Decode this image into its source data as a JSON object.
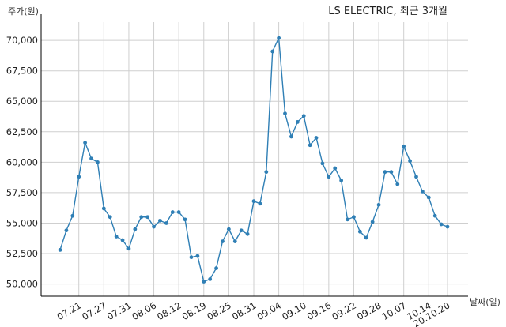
{
  "chart_data": {
    "type": "line",
    "title": "LS ELECTRIC, 최근 3개월",
    "xlabel": "날짜(일)",
    "ylabel": "주가(원)",
    "ylim": [
      49000,
      71500
    ],
    "yticks": [
      50000,
      52500,
      55000,
      57500,
      60000,
      62500,
      65000,
      67500,
      70000
    ],
    "ytick_labels": [
      "50,000",
      "52,500",
      "55,000",
      "57,500",
      "60,000",
      "62,500",
      "65,000",
      "67,500",
      "70,000"
    ],
    "xticks": [
      {
        "index": 3,
        "label": "07.21"
      },
      {
        "index": 7,
        "label": "07.27"
      },
      {
        "index": 11,
        "label": "07.31"
      },
      {
        "index": 15,
        "label": "08.06"
      },
      {
        "index": 19,
        "label": "08.12"
      },
      {
        "index": 23,
        "label": "08.19"
      },
      {
        "index": 27,
        "label": "08.25"
      },
      {
        "index": 31,
        "label": "08.31"
      },
      {
        "index": 35,
        "label": "09.04"
      },
      {
        "index": 39,
        "label": "09.10"
      },
      {
        "index": 43,
        "label": "09.16"
      },
      {
        "index": 47,
        "label": "09.22"
      },
      {
        "index": 51,
        "label": "09.28"
      },
      {
        "index": 55,
        "label": "10.07"
      },
      {
        "index": 59,
        "label": "10.14"
      },
      {
        "index": 62,
        "label": "20.10.20"
      }
    ],
    "grid": true,
    "series": [
      {
        "color": "#2f7fb5",
        "values": [
          52800,
          54400,
          55600,
          58800,
          61600,
          60300,
          60000,
          56200,
          55500,
          53900,
          53600,
          52900,
          54500,
          55500,
          55500,
          54700,
          55200,
          55000,
          55900,
          55900,
          55300,
          52200,
          52300,
          50200,
          50400,
          51300,
          53500,
          54500,
          53500,
          54400,
          54100,
          56800,
          56600,
          59200,
          69100,
          70200,
          64000,
          62100,
          63300,
          63800,
          61400,
          62000,
          59900,
          58800,
          59500,
          58500,
          55300,
          55500,
          54300,
          53800,
          55100,
          56500,
          59200,
          59200,
          58200,
          61300,
          60100,
          58800,
          57600,
          57100,
          55600,
          54900,
          54700
        ]
      }
    ]
  }
}
